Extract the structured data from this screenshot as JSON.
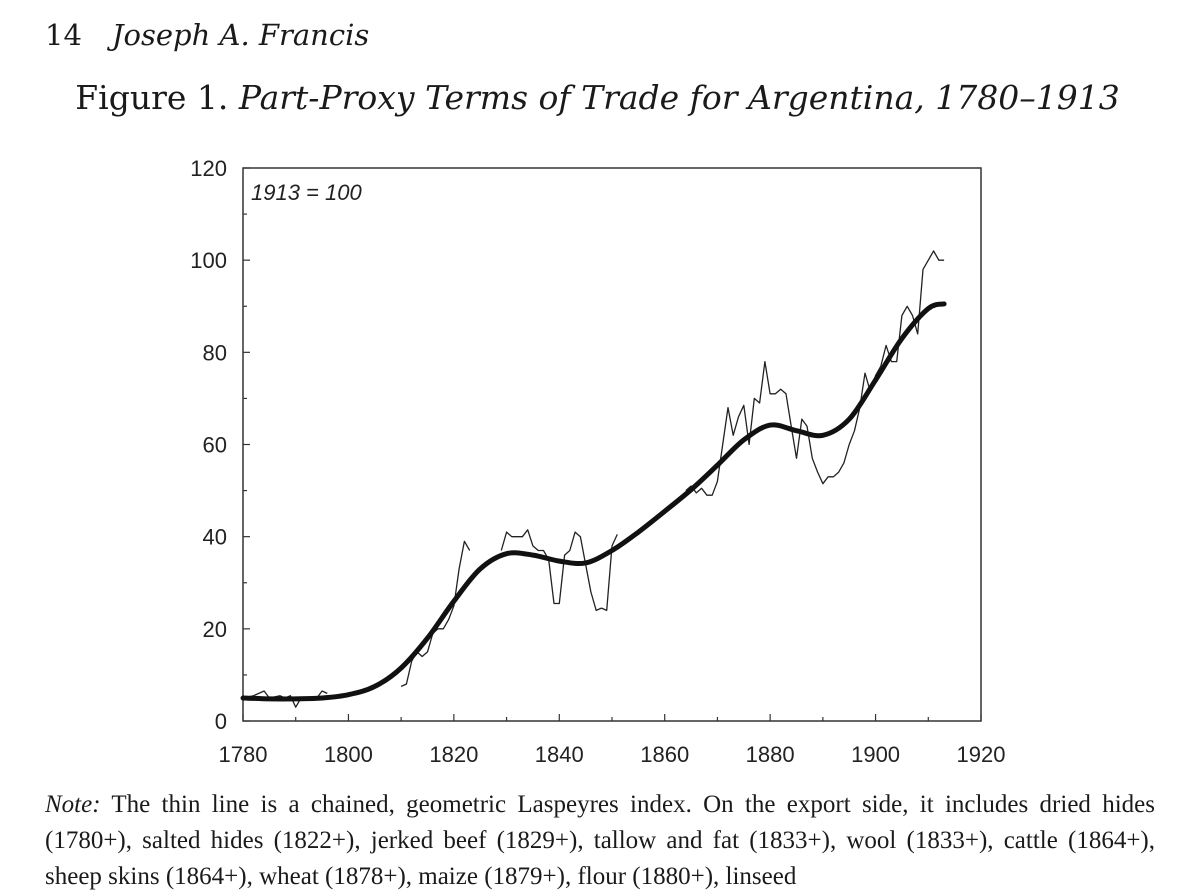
{
  "page": {
    "number": "14",
    "author": "Joseph A. Francis"
  },
  "figure": {
    "label": "Figure 1.",
    "title": "Part-Proxy Terms of Trade for Argentina, 1780–1913"
  },
  "chart_data": {
    "type": "line",
    "annotation": "1913 = 100",
    "xlim": [
      1780,
      1920
    ],
    "ylim": [
      0,
      120
    ],
    "x_ticks": [
      1780,
      1800,
      1820,
      1840,
      1860,
      1880,
      1900,
      1920
    ],
    "y_ticks": [
      0,
      20,
      40,
      60,
      80,
      100,
      120
    ],
    "legend": "none",
    "grid": false,
    "series": [
      {
        "style": "thin",
        "segments": [
          [
            [
              1780,
              5
            ],
            [
              1782,
              5.5
            ],
            [
              1784,
              6.5
            ],
            [
              1785,
              5
            ],
            [
              1787,
              5.5
            ],
            [
              1788,
              5
            ],
            [
              1789,
              5.5
            ],
            [
              1790,
              3
            ],
            [
              1791,
              5
            ],
            [
              1793,
              4.5
            ],
            [
              1794,
              5
            ],
            [
              1795,
              6.5
            ],
            [
              1796,
              6
            ]
          ],
          [
            [
              1810,
              7.5
            ],
            [
              1811,
              8
            ],
            [
              1812,
              13
            ],
            [
              1813,
              15
            ],
            [
              1814,
              14
            ],
            [
              1815,
              15
            ],
            [
              1816,
              19
            ],
            [
              1817,
              20
            ],
            [
              1818,
              20
            ],
            [
              1819,
              22
            ],
            [
              1820,
              25
            ],
            [
              1821,
              33
            ],
            [
              1822,
              39
            ],
            [
              1823,
              37
            ]
          ],
          [
            [
              1829,
              37
            ],
            [
              1830,
              41
            ],
            [
              1831,
              40
            ],
            [
              1832,
              40
            ],
            [
              1833,
              40
            ],
            [
              1834,
              41.5
            ],
            [
              1835,
              38
            ],
            [
              1836,
              37
            ],
            [
              1837,
              37
            ],
            [
              1838,
              35
            ],
            [
              1839,
              25.5
            ],
            [
              1840,
              25.5
            ],
            [
              1841,
              36
            ],
            [
              1842,
              37
            ],
            [
              1843,
              41
            ],
            [
              1844,
              40
            ],
            [
              1845,
              34
            ],
            [
              1846,
              28
            ],
            [
              1847,
              24
            ],
            [
              1848,
              24.5
            ],
            [
              1849,
              24
            ],
            [
              1850,
              38
            ],
            [
              1851,
              40.5
            ]
          ],
          [
            [
              1864,
              50
            ],
            [
              1865,
              51
            ],
            [
              1866,
              49.5
            ],
            [
              1867,
              50.5
            ],
            [
              1868,
              49
            ],
            [
              1869,
              49
            ],
            [
              1870,
              52
            ],
            [
              1871,
              60
            ],
            [
              1872,
              68
            ],
            [
              1873,
              62
            ],
            [
              1874,
              66
            ],
            [
              1875,
              68.5
            ],
            [
              1876,
              60
            ],
            [
              1877,
              70
            ],
            [
              1878,
              69
            ],
            [
              1879,
              78
            ],
            [
              1880,
              71
            ],
            [
              1881,
              71
            ],
            [
              1882,
              72
            ],
            [
              1883,
              71
            ],
            [
              1884,
              64
            ],
            [
              1885,
              57
            ],
            [
              1886,
              65.5
            ],
            [
              1887,
              64
            ],
            [
              1888,
              57
            ],
            [
              1889,
              54
            ],
            [
              1890,
              51.5
            ],
            [
              1891,
              53
            ],
            [
              1892,
              53
            ],
            [
              1893,
              54
            ],
            [
              1894,
              56
            ],
            [
              1895,
              60
            ],
            [
              1896,
              63
            ],
            [
              1897,
              68
            ],
            [
              1898,
              75.5
            ],
            [
              1899,
              71.5
            ],
            [
              1900,
              75
            ],
            [
              1901,
              77
            ],
            [
              1902,
              81.5
            ],
            [
              1903,
              78
            ],
            [
              1904,
              78
            ],
            [
              1905,
              88
            ],
            [
              1906,
              90
            ],
            [
              1907,
              88
            ],
            [
              1908,
              84
            ],
            [
              1909,
              98
            ],
            [
              1910,
              100
            ],
            [
              1911,
              102
            ],
            [
              1912,
              100
            ],
            [
              1913,
              100
            ]
          ]
        ]
      },
      {
        "style": "thick",
        "points": [
          [
            1780,
            5
          ],
          [
            1785,
            4.8
          ],
          [
            1790,
            4.8
          ],
          [
            1795,
            5
          ],
          [
            1800,
            5.7
          ],
          [
            1805,
            7.5
          ],
          [
            1810,
            11.5
          ],
          [
            1815,
            18
          ],
          [
            1820,
            26
          ],
          [
            1825,
            33
          ],
          [
            1830,
            36.3
          ],
          [
            1835,
            36
          ],
          [
            1840,
            34.7
          ],
          [
            1845,
            34.3
          ],
          [
            1850,
            37
          ],
          [
            1855,
            41
          ],
          [
            1860,
            45.5
          ],
          [
            1865,
            50.2
          ],
          [
            1870,
            55.5
          ],
          [
            1875,
            61
          ],
          [
            1880,
            64.2
          ],
          [
            1885,
            63
          ],
          [
            1890,
            62
          ],
          [
            1895,
            65.5
          ],
          [
            1900,
            74
          ],
          [
            1905,
            83
          ],
          [
            1910,
            89.5
          ],
          [
            1913,
            90.5
          ]
        ]
      }
    ]
  },
  "note": {
    "label": "Note:",
    "text": "The thin line is a chained, geometric Laspeyres index. On the export side, it includes dried hides (1780+), salted hides (1822+), jerked beef (1829+), tallow and fat (1833+), wool (1833+), cattle (1864+), sheep skins (1864+), wheat (1878+), maize (1879+), flour (1880+), linseed"
  }
}
